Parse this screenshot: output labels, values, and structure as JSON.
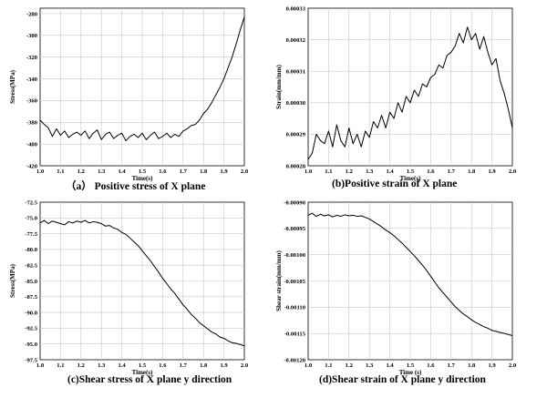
{
  "chart_data": [
    {
      "type": "line",
      "panel": "a",
      "caption": "（a） Positive stress of X plane",
      "title": "",
      "xlabel": "Time(s)",
      "ylabel": "Stress(MPa)",
      "xlim": [
        1.0,
        2.0
      ],
      "ylim": [
        -420,
        -275
      ],
      "xticks": [
        "1.0",
        "1.1",
        "1.2",
        "1.3",
        "1.4",
        "1.5",
        "1.6",
        "1.7",
        "1.8",
        "1.9",
        "2.0"
      ],
      "yticks": [
        "-280",
        "-300",
        "-320",
        "-340",
        "-360",
        "-380",
        "-400",
        "-420"
      ],
      "ytick_values": [
        -280,
        -300,
        -320,
        -340,
        -360,
        -380,
        -400,
        -420
      ],
      "grid": true,
      "series": [
        {
          "color": "#000000",
          "x": [
            1.0,
            1.02,
            1.04,
            1.06,
            1.08,
            1.1,
            1.12,
            1.14,
            1.16,
            1.18,
            1.2,
            1.22,
            1.24,
            1.26,
            1.28,
            1.3,
            1.32,
            1.34,
            1.36,
            1.38,
            1.4,
            1.42,
            1.44,
            1.46,
            1.48,
            1.5,
            1.52,
            1.54,
            1.56,
            1.58,
            1.6,
            1.62,
            1.64,
            1.66,
            1.68,
            1.7,
            1.72,
            1.74,
            1.76,
            1.78,
            1.8,
            1.82,
            1.84,
            1.86,
            1.88,
            1.9,
            1.92,
            1.94,
            1.96,
            1.98,
            2.0
          ],
          "y": [
            -378,
            -382,
            -385,
            -393,
            -386,
            -392,
            -388,
            -394,
            -391,
            -389,
            -392,
            -388,
            -395,
            -390,
            -387,
            -396,
            -391,
            -389,
            -395,
            -392,
            -390,
            -397,
            -393,
            -391,
            -394,
            -390,
            -396,
            -392,
            -389,
            -395,
            -393,
            -390,
            -394,
            -391,
            -393,
            -388,
            -386,
            -383,
            -382,
            -378,
            -372,
            -368,
            -362,
            -355,
            -348,
            -340,
            -330,
            -320,
            -308,
            -295,
            -283
          ]
        }
      ]
    },
    {
      "type": "line",
      "panel": "b",
      "caption": "(b)Positive strain of X plane",
      "title": "",
      "xlabel": "Time(s)",
      "ylabel": "Strain(mm/mm)",
      "xlim": [
        1.0,
        2.0
      ],
      "ylim": [
        0.00028,
        0.00033
      ],
      "xticks": [
        "1.0",
        "1.1",
        "1.2",
        "1.3",
        "1.4",
        "1.5",
        "1.6",
        "1.7",
        "1.8",
        "1.9",
        "2.0"
      ],
      "yticks": [
        "0.00033",
        "0.00032",
        "0.00031",
        "0.00030",
        "0.00029",
        "0.00028"
      ],
      "ytick_values": [
        0.00033,
        0.00032,
        0.00031,
        0.0003,
        0.00029,
        0.00028
      ],
      "grid": true,
      "series": [
        {
          "color": "#000000",
          "x": [
            1.0,
            1.02,
            1.04,
            1.06,
            1.08,
            1.1,
            1.12,
            1.14,
            1.16,
            1.18,
            1.2,
            1.22,
            1.24,
            1.26,
            1.28,
            1.3,
            1.32,
            1.34,
            1.36,
            1.38,
            1.4,
            1.42,
            1.44,
            1.46,
            1.48,
            1.5,
            1.52,
            1.54,
            1.56,
            1.58,
            1.6,
            1.62,
            1.64,
            1.66,
            1.68,
            1.7,
            1.72,
            1.74,
            1.76,
            1.78,
            1.8,
            1.82,
            1.84,
            1.86,
            1.88,
            1.9,
            1.92,
            1.94,
            1.96,
            1.98,
            2.0
          ],
          "y": [
            0.000282,
            0.000284,
            0.00029,
            0.000288,
            0.000287,
            0.000291,
            0.000286,
            0.000293,
            0.000288,
            0.000286,
            0.000292,
            0.000287,
            0.00029,
            0.000286,
            0.000291,
            0.000289,
            0.000294,
            0.000292,
            0.000296,
            0.000292,
            0.000297,
            0.000295,
            0.0003,
            0.000297,
            0.000302,
            0.0003,
            0.000304,
            0.000302,
            0.000306,
            0.000305,
            0.000308,
            0.000309,
            0.000312,
            0.000311,
            0.000315,
            0.000316,
            0.000318,
            0.000322,
            0.000319,
            0.000324,
            0.00032,
            0.000322,
            0.000317,
            0.000321,
            0.000316,
            0.000312,
            0.000314,
            0.000307,
            0.000303,
            0.000298,
            0.000292
          ]
        }
      ]
    },
    {
      "type": "line",
      "panel": "c",
      "caption": "(c)Shear stress of X plane y direction",
      "title": "",
      "xlabel": "Time(s)",
      "ylabel": "Stress(MPa)",
      "xlim": [
        1.0,
        2.0
      ],
      "ylim": [
        -97.5,
        -72.5
      ],
      "xticks": [
        "1.0",
        "1.1",
        "1.2",
        "1.3",
        "1.4",
        "1.5",
        "1.6",
        "1.7",
        "1.8",
        "1.9",
        "2.0"
      ],
      "yticks": [
        "-72.5",
        "-75.0",
        "-77.5",
        "-80.0",
        "-82.5",
        "-85.0",
        "-87.5",
        "-90.0",
        "-92.5",
        "-95.0",
        "-97.5"
      ],
      "ytick_values": [
        -72.5,
        -75.0,
        -77.5,
        -80.0,
        -82.5,
        -85.0,
        -87.5,
        -90.0,
        -92.5,
        -95.0,
        -97.5
      ],
      "grid": true,
      "series": [
        {
          "color": "#000000",
          "x": [
            1.0,
            1.02,
            1.04,
            1.06,
            1.08,
            1.1,
            1.12,
            1.14,
            1.16,
            1.18,
            1.2,
            1.22,
            1.24,
            1.26,
            1.28,
            1.3,
            1.32,
            1.34,
            1.36,
            1.38,
            1.4,
            1.42,
            1.44,
            1.46,
            1.48,
            1.5,
            1.52,
            1.54,
            1.56,
            1.58,
            1.6,
            1.62,
            1.64,
            1.66,
            1.68,
            1.7,
            1.72,
            1.74,
            1.76,
            1.78,
            1.8,
            1.82,
            1.84,
            1.86,
            1.88,
            1.9,
            1.92,
            1.94,
            1.96,
            1.98,
            2.0
          ],
          "y": [
            -75.8,
            -75.4,
            -75.9,
            -75.5,
            -75.7,
            -75.9,
            -76.1,
            -75.6,
            -75.8,
            -75.5,
            -75.7,
            -75.4,
            -75.8,
            -75.6,
            -75.7,
            -75.9,
            -76.3,
            -76.2,
            -76.6,
            -76.8,
            -77.3,
            -77.6,
            -78.2,
            -78.8,
            -79.4,
            -80.2,
            -81.0,
            -81.8,
            -82.7,
            -83.6,
            -84.6,
            -85.4,
            -86.3,
            -87.0,
            -87.9,
            -88.8,
            -89.5,
            -90.3,
            -90.9,
            -91.6,
            -92.1,
            -92.6,
            -93.1,
            -93.4,
            -93.9,
            -94.1,
            -94.5,
            -94.8,
            -94.9,
            -95.1,
            -95.3
          ]
        }
      ]
    },
    {
      "type": "line",
      "panel": "d",
      "caption": "(d)Shear strain of X plane y direction",
      "title": "",
      "xlabel": "Time (s)",
      "ylabel": "Shear strain(mm/mm)",
      "xlim": [
        1.0,
        2.0
      ],
      "ylim": [
        -0.0012,
        -0.0009
      ],
      "xticks": [
        "1.0",
        "1.1",
        "1.2",
        "1.3",
        "1.4",
        "1.5",
        "1.6",
        "1.7",
        "1.8",
        "1.9",
        "2.0"
      ],
      "yticks": [
        "-0.00090",
        "-0.00095",
        "-0.00100",
        "-0.00105",
        "-0.00110",
        "-0.00115",
        "-0.00120"
      ],
      "ytick_values": [
        -0.0009,
        -0.00095,
        -0.001,
        -0.00105,
        -0.0011,
        -0.00115,
        -0.0012
      ],
      "grid": true,
      "series": [
        {
          "color": "#000000",
          "x": [
            1.0,
            1.02,
            1.04,
            1.06,
            1.08,
            1.1,
            1.12,
            1.14,
            1.16,
            1.18,
            1.2,
            1.22,
            1.24,
            1.26,
            1.28,
            1.3,
            1.32,
            1.34,
            1.36,
            1.38,
            1.4,
            1.42,
            1.44,
            1.46,
            1.48,
            1.5,
            1.52,
            1.54,
            1.56,
            1.58,
            1.6,
            1.62,
            1.64,
            1.66,
            1.68,
            1.7,
            1.72,
            1.74,
            1.76,
            1.78,
            1.8,
            1.82,
            1.84,
            1.86,
            1.88,
            1.9,
            1.92,
            1.94,
            1.96,
            1.98,
            2.0
          ],
          "y": [
            -0.000925,
            -0.000921,
            -0.000927,
            -0.000923,
            -0.000926,
            -0.000924,
            -0.000928,
            -0.000925,
            -0.000927,
            -0.000924,
            -0.000926,
            -0.000925,
            -0.000927,
            -0.000926,
            -0.000929,
            -0.000932,
            -0.000937,
            -0.000942,
            -0.000947,
            -0.000953,
            -0.000958,
            -0.000964,
            -0.000971,
            -0.000978,
            -0.000986,
            -0.000994,
            -0.001002,
            -0.001011,
            -0.00102,
            -0.00103,
            -0.001041,
            -0.001052,
            -0.001063,
            -0.001072,
            -0.001081,
            -0.00109,
            -0.001099,
            -0.001106,
            -0.001113,
            -0.001118,
            -0.001124,
            -0.001129,
            -0.001133,
            -0.001137,
            -0.00114,
            -0.001144,
            -0.001146,
            -0.001148,
            -0.00115,
            -0.001152,
            -0.001154
          ]
        }
      ]
    }
  ]
}
